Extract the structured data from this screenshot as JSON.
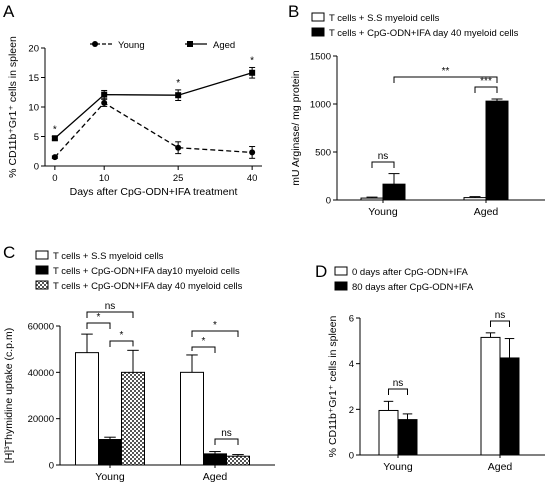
{
  "panels": [
    {
      "letter": "A",
      "chart_data": {
        "type": "line",
        "xlabel": "Days after CpG-ODN+IFA treatment",
        "ylabel": "% CD11b⁺Gr1⁺ cells in spleen",
        "x": [
          0,
          10,
          25,
          40
        ],
        "xlim": [
          -2,
          42
        ],
        "ylim": [
          0,
          20
        ],
        "yticks": [
          0,
          5,
          10,
          15,
          20
        ],
        "legend_position": "top",
        "series": [
          {
            "name": "Young",
            "values": [
              1.5,
              10.7,
              3.1,
              2.3
            ],
            "errors": [
              0.2,
              0.6,
              1.0,
              1.0
            ],
            "style": "dashed",
            "marker": "circle"
          },
          {
            "name": "Aged",
            "values": [
              4.7,
              12.1,
              12.0,
              15.8
            ],
            "errors": [
              0.3,
              0.7,
              0.9,
              0.9
            ],
            "style": "solid",
            "marker": "square"
          }
        ],
        "annotations": [
          {
            "x": 0,
            "text": "*"
          },
          {
            "x": 25,
            "text": "*"
          },
          {
            "x": 40,
            "text": "*"
          }
        ]
      }
    },
    {
      "letter": "B",
      "chart_data": {
        "type": "bar",
        "categories": [
          "Young",
          "Aged"
        ],
        "ylabel": "mU Arginase/ mg protein",
        "ylim": [
          0,
          1500
        ],
        "yticks": [
          0,
          500,
          1000,
          1500
        ],
        "legend_position": "top",
        "series": [
          {
            "name": "T cells + S.S myeloid cells",
            "values": [
              20,
              25
            ],
            "errors": [
              10,
              10
            ],
            "fill": "white"
          },
          {
            "name": "T cells + CpG-ODN+IFA day 40 myeloid cells",
            "values": [
              165,
              1030
            ],
            "errors": [
              110,
              22
            ],
            "fill": "black"
          }
        ],
        "significance": [
          {
            "from": [
              0,
              0
            ],
            "to": [
              0,
              1
            ],
            "text": "ns"
          },
          {
            "from": [
              1,
              0
            ],
            "to": [
              1,
              1
            ],
            "text": "***"
          },
          {
            "from": [
              0,
              1
            ],
            "to": [
              1,
              1
            ],
            "text": "**"
          }
        ]
      }
    },
    {
      "letter": "C",
      "chart_data": {
        "type": "bar",
        "categories": [
          "Young",
          "Aged"
        ],
        "ylabel": "[H]³Thymidine uptake (c.p.m)",
        "ylim": [
          0,
          60000
        ],
        "yticks": [
          0,
          20000,
          40000,
          60000
        ],
        "legend_position": "top",
        "series": [
          {
            "name": "T cells + S.S myeloid cells",
            "values": [
              48500,
              40000
            ],
            "errors": [
              8000,
              7500
            ],
            "fill": "white"
          },
          {
            "name": "T cells + CpG-ODN+IFA day10 myeloid cells",
            "values": [
              11000,
              4800
            ],
            "errors": [
              1000,
              1000
            ],
            "fill": "black"
          },
          {
            "name": "T cells + CpG-ODN+IFA day 40 myeloid cells",
            "values": [
              40000,
              3800
            ],
            "errors": [
              9500,
              700
            ],
            "fill": "checker"
          }
        ],
        "significance": [
          {
            "from": [
              0,
              0
            ],
            "to": [
              0,
              1
            ],
            "text": "*"
          },
          {
            "from": [
              0,
              1
            ],
            "to": [
              0,
              2
            ],
            "text": "*"
          },
          {
            "from": [
              0,
              0
            ],
            "to": [
              0,
              2
            ],
            "text": "ns"
          },
          {
            "from": [
              1,
              0
            ],
            "to": [
              1,
              1
            ],
            "text": "*"
          },
          {
            "from": [
              1,
              0
            ],
            "to": [
              1,
              2
            ],
            "text": "*"
          },
          {
            "from": [
              1,
              1
            ],
            "to": [
              1,
              2
            ],
            "text": "ns"
          }
        ]
      }
    },
    {
      "letter": "D",
      "chart_data": {
        "type": "bar",
        "categories": [
          "Young",
          "Aged"
        ],
        "ylabel": "% CD11b⁺Gr1⁺ cells in spleen",
        "ylim": [
          0,
          6
        ],
        "yticks": [
          0,
          2,
          4,
          6
        ],
        "legend_position": "top",
        "series": [
          {
            "name": "0 days after CpG-ODN+IFA",
            "values": [
              1.95,
              5.15
            ],
            "errors": [
              0.4,
              0.2
            ],
            "fill": "white"
          },
          {
            "name": "80 days after CpG-ODN+IFA",
            "values": [
              1.55,
              4.25
            ],
            "errors": [
              0.25,
              0.85
            ],
            "fill": "black"
          }
        ],
        "significance": [
          {
            "from": [
              0,
              0
            ],
            "to": [
              0,
              1
            ],
            "text": "ns"
          },
          {
            "from": [
              1,
              0
            ],
            "to": [
              1,
              1
            ],
            "text": "ns"
          }
        ]
      }
    }
  ]
}
